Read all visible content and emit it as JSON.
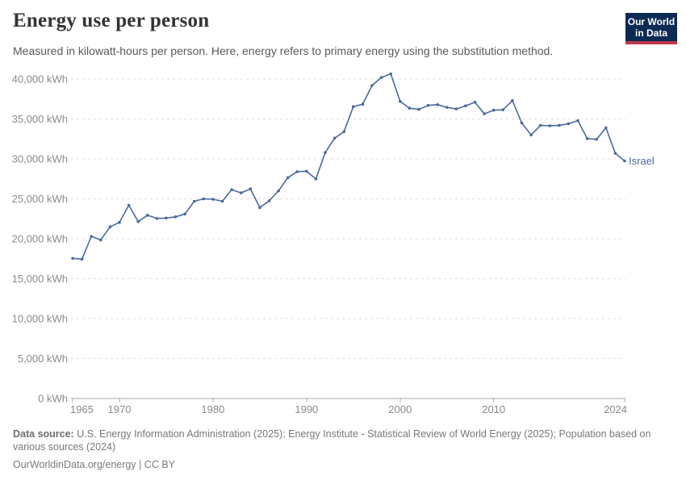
{
  "header": {
    "title": "Energy use per person",
    "subtitle": "Measured in kilowatt-hours per person. Here, energy refers to primary energy using the substitution method.",
    "logo": {
      "line1": "Our World",
      "line2": "in Data",
      "bg_color": "#0B2A54",
      "stripe_color": "#C0394B"
    }
  },
  "chart_data": {
    "type": "line",
    "title": "Energy use per person",
    "entity": "Israel",
    "unit": "kWh",
    "line_color": "#4B6A9D",
    "grid": true,
    "legend_position": "end-of-line-label",
    "ylim": [
      0,
      40000
    ],
    "ytick_step": 5000,
    "xticks": [
      1965,
      1970,
      1980,
      1990,
      2000,
      2010,
      2024
    ],
    "x": [
      1965,
      1966,
      1967,
      1968,
      1969,
      1970,
      1971,
      1972,
      1973,
      1974,
      1975,
      1976,
      1977,
      1978,
      1979,
      1980,
      1981,
      1982,
      1983,
      1984,
      1985,
      1986,
      1987,
      1988,
      1989,
      1990,
      1991,
      1992,
      1993,
      1994,
      1995,
      1996,
      1997,
      1998,
      1999,
      2000,
      2001,
      2002,
      2003,
      2004,
      2005,
      2006,
      2007,
      2008,
      2009,
      2010,
      2011,
      2012,
      2013,
      2014,
      2015,
      2016,
      2017,
      2018,
      2019,
      2020,
      2021,
      2022,
      2023,
      2024
    ],
    "values": [
      17550,
      17450,
      20300,
      19850,
      21500,
      22050,
      24200,
      22150,
      22950,
      22550,
      22600,
      22750,
      23100,
      24700,
      25000,
      24950,
      24700,
      26150,
      25750,
      26250,
      23900,
      24750,
      26000,
      27650,
      28400,
      28450,
      27500,
      30800,
      32600,
      33400,
      36550,
      36850,
      39200,
      40200,
      40650,
      37200,
      36350,
      36200,
      36700,
      36800,
      36450,
      36250,
      36650,
      37100,
      35650,
      36100,
      36150,
      37300,
      34500,
      33000,
      34200,
      34150,
      34200,
      34400,
      34800,
      32550,
      32450,
      33900,
      30700,
      29750
    ],
    "xlabel": "",
    "ylabel": ""
  },
  "footer": {
    "datasource_label": "Data source:",
    "datasource_text": " U.S. Energy Information Administration (2025); Energy Institute - Statistical Review of World Energy (2025); Population based on various sources (2024)",
    "link_text": "OurWorldinData.org/energy | CC BY"
  },
  "colors": {
    "axis_text": "#8a8a8a",
    "gridline": "#dcdcdc",
    "axis_line": "#a8a8a8",
    "title_text": "#333333",
    "subtitle_text": "#595959"
  }
}
